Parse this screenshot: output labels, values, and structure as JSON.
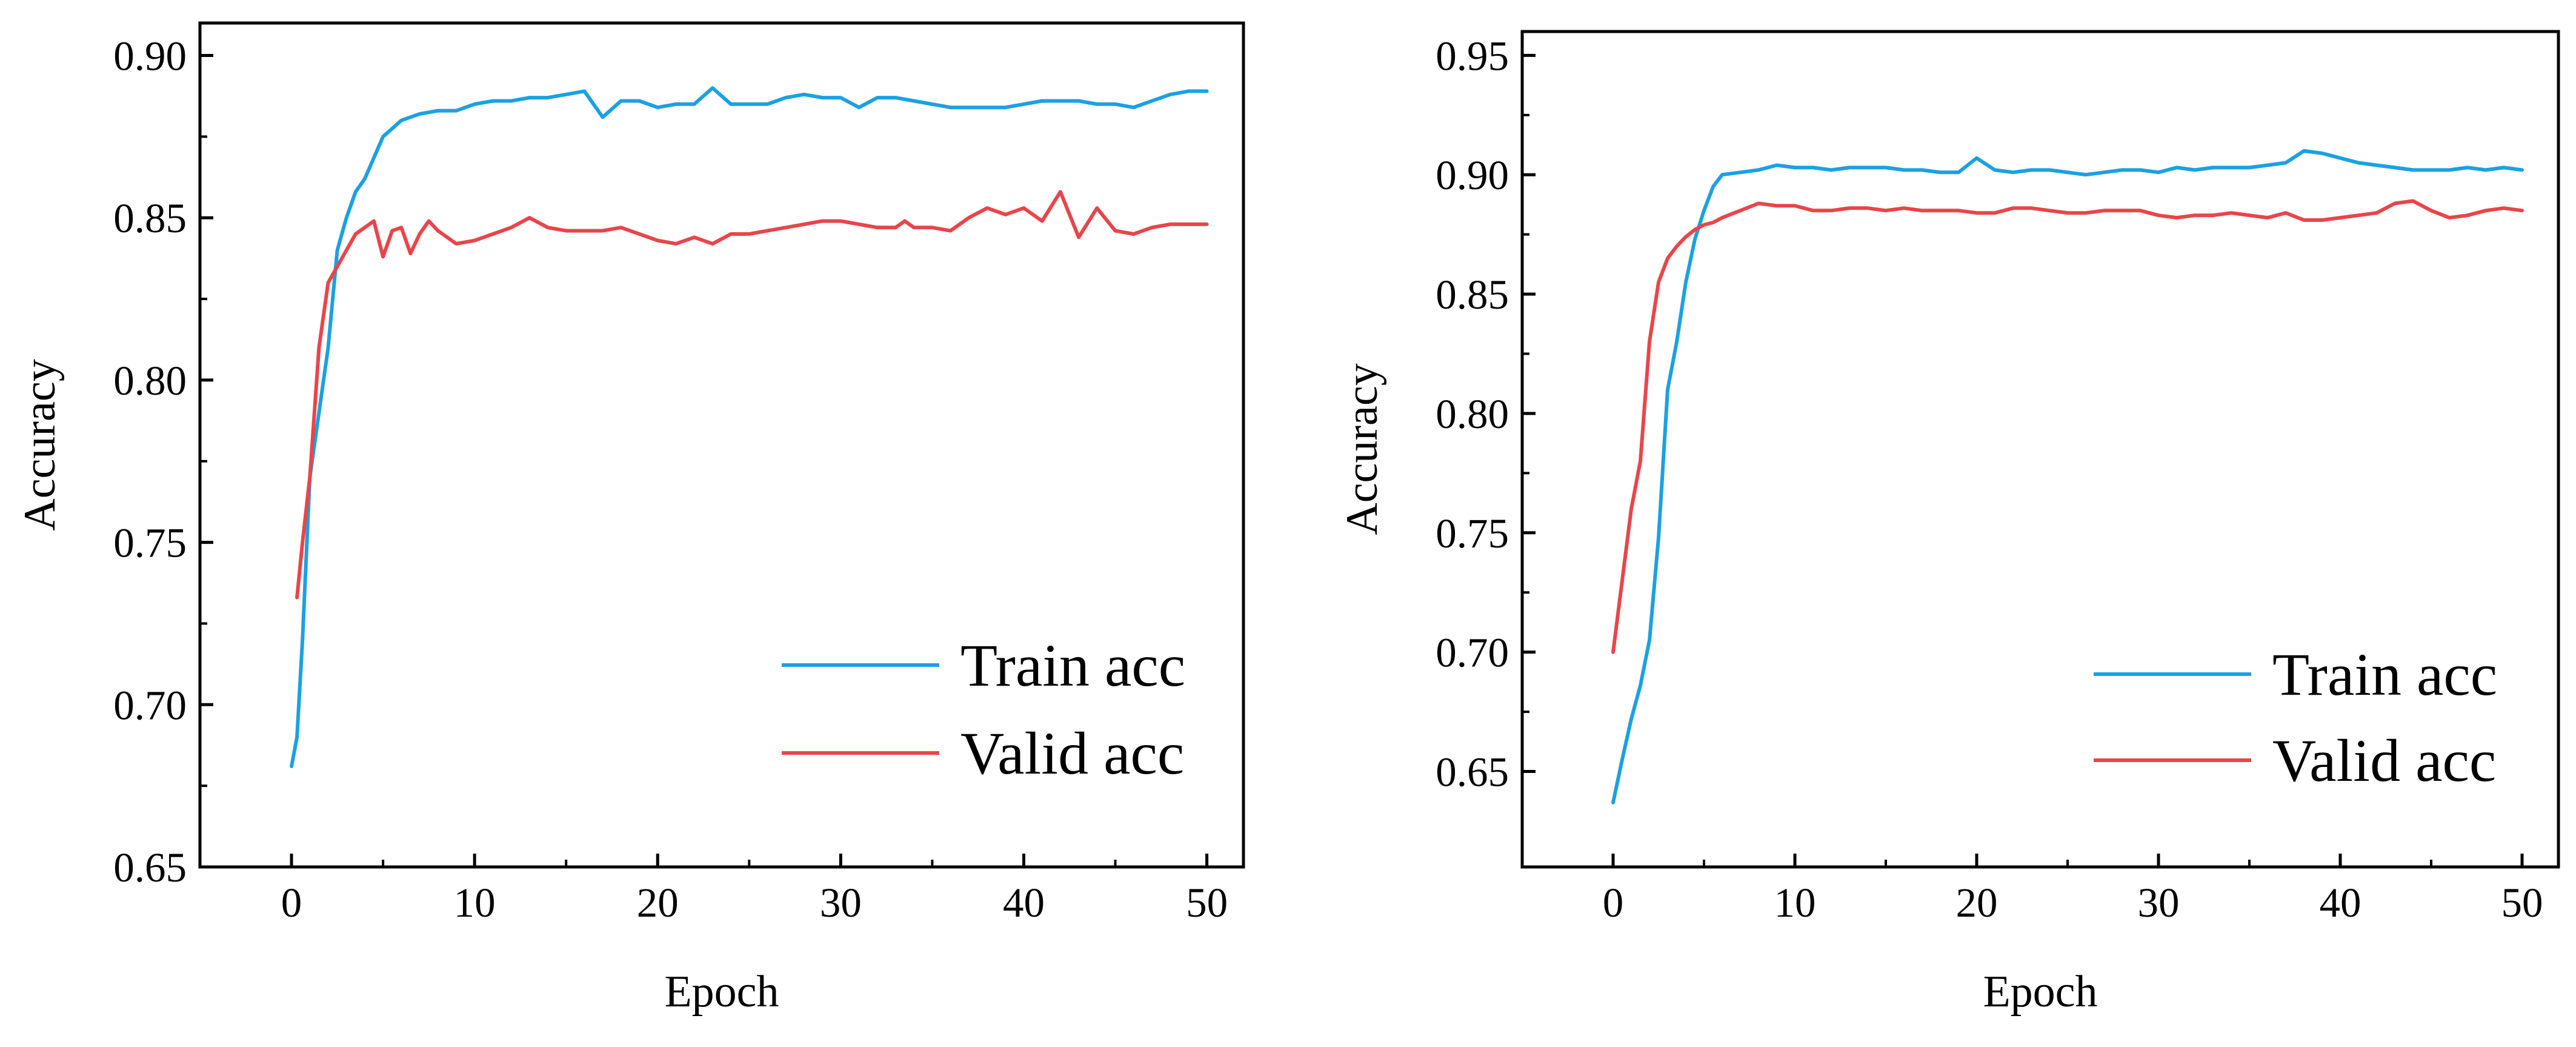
{
  "chart_data": [
    {
      "type": "line",
      "title": "",
      "xlabel": "Epoch",
      "ylabel": "Accuracy",
      "xlim": [
        -5,
        52
      ],
      "ylim": [
        0.65,
        0.91
      ],
      "xticks": [
        0,
        10,
        20,
        30,
        40,
        50
      ],
      "xtick_labels": [
        "0",
        "10",
        "20",
        "30",
        "40",
        "50"
      ],
      "yticks": [
        0.65,
        0.7,
        0.75,
        0.8,
        0.85,
        0.9
      ],
      "ytick_labels": [
        "0.65",
        "0.70",
        "0.75",
        "0.80",
        "0.85",
        "0.90"
      ],
      "legend_position": "bottom-right",
      "grid": false,
      "series": [
        {
          "name": "Train acc",
          "color": "#1ba1e2",
          "x": [
            0,
            0.3,
            0.6,
            1,
            1.5,
            2,
            2.5,
            3,
            3.5,
            4,
            5,
            6,
            7,
            8,
            9,
            10,
            11,
            12,
            13,
            14,
            15,
            16,
            17,
            18,
            19,
            20,
            21,
            22,
            23,
            24,
            25,
            26,
            27,
            28,
            29,
            30,
            31,
            32,
            33,
            34,
            35,
            36,
            37,
            38,
            39,
            40,
            41,
            42,
            43,
            44,
            45,
            46,
            47,
            48,
            49,
            50
          ],
          "values": [
            0.681,
            0.69,
            0.72,
            0.77,
            0.79,
            0.81,
            0.84,
            0.85,
            0.858,
            0.862,
            0.875,
            0.88,
            0.882,
            0.883,
            0.883,
            0.885,
            0.886,
            0.886,
            0.887,
            0.887,
            0.888,
            0.889,
            0.881,
            0.886,
            0.886,
            0.884,
            0.885,
            0.885,
            0.89,
            0.885,
            0.885,
            0.885,
            0.887,
            0.888,
            0.887,
            0.887,
            0.884,
            0.887,
            0.887,
            0.886,
            0.885,
            0.884,
            0.884,
            0.884,
            0.884,
            0.885,
            0.886,
            0.886,
            0.886,
            0.885,
            0.885,
            0.884,
            0.886,
            0.888,
            0.889,
            0.889
          ]
        },
        {
          "name": "Valid acc",
          "color": "#e8454a",
          "x": [
            0.3,
            0.6,
            1,
            1.5,
            2,
            2.5,
            3,
            3.5,
            4,
            4.5,
            5,
            5.5,
            6,
            6.5,
            7,
            7.5,
            8,
            9,
            10,
            11,
            12,
            13,
            14,
            15,
            16,
            17,
            18,
            19,
            20,
            21,
            22,
            23,
            24,
            25,
            26,
            27,
            28,
            29,
            30,
            31,
            32,
            33,
            33.5,
            34,
            35,
            36,
            37,
            38,
            39,
            40,
            41,
            42,
            43,
            44,
            45,
            46,
            47,
            48,
            49,
            50
          ],
          "values": [
            0.733,
            0.75,
            0.77,
            0.81,
            0.83,
            0.835,
            0.84,
            0.845,
            0.847,
            0.849,
            0.838,
            0.846,
            0.847,
            0.839,
            0.845,
            0.849,
            0.846,
            0.842,
            0.843,
            0.845,
            0.847,
            0.85,
            0.847,
            0.846,
            0.846,
            0.846,
            0.847,
            0.845,
            0.843,
            0.842,
            0.844,
            0.842,
            0.845,
            0.845,
            0.846,
            0.847,
            0.848,
            0.849,
            0.849,
            0.848,
            0.847,
            0.847,
            0.849,
            0.847,
            0.847,
            0.846,
            0.85,
            0.853,
            0.851,
            0.853,
            0.849,
            0.858,
            0.844,
            0.853,
            0.846,
            0.845,
            0.847,
            0.848,
            0.848,
            0.848
          ]
        }
      ]
    },
    {
      "type": "line",
      "title": "",
      "xlabel": "Epoch",
      "ylabel": "Accuracy",
      "xlim": [
        -5,
        52
      ],
      "ylim": [
        0.61,
        0.96
      ],
      "xticks": [
        0,
        10,
        20,
        30,
        40,
        50
      ],
      "xtick_labels": [
        "0",
        "10",
        "20",
        "30",
        "40",
        "50"
      ],
      "yticks": [
        0.65,
        0.7,
        0.75,
        0.8,
        0.85,
        0.9,
        0.95
      ],
      "ytick_labels": [
        "0.65",
        "0.70",
        "0.75",
        "0.80",
        "0.85",
        "0.90",
        "0.95"
      ],
      "legend_position": "bottom-right",
      "grid": false,
      "series": [
        {
          "name": "Train acc",
          "color": "#1ba1e2",
          "x": [
            0,
            0.5,
            1,
            1.5,
            2,
            2.5,
            3,
            3.5,
            4,
            4.5,
            5,
            5.5,
            6,
            7,
            8,
            9,
            10,
            11,
            12,
            13,
            14,
            15,
            16,
            17,
            18,
            19,
            20,
            21,
            22,
            23,
            24,
            25,
            26,
            27,
            28,
            29,
            30,
            31,
            32,
            33,
            34,
            35,
            36,
            37,
            38,
            39,
            40,
            41,
            42,
            43,
            44,
            45,
            46,
            47,
            48,
            49,
            50
          ],
          "values": [
            0.637,
            0.655,
            0.672,
            0.686,
            0.705,
            0.748,
            0.81,
            0.83,
            0.855,
            0.873,
            0.885,
            0.895,
            0.9,
            0.901,
            0.902,
            0.904,
            0.903,
            0.903,
            0.902,
            0.903,
            0.903,
            0.903,
            0.902,
            0.902,
            0.901,
            0.901,
            0.907,
            0.902,
            0.901,
            0.902,
            0.902,
            0.901,
            0.9,
            0.901,
            0.902,
            0.902,
            0.901,
            0.903,
            0.902,
            0.903,
            0.903,
            0.903,
            0.904,
            0.905,
            0.91,
            0.909,
            0.907,
            0.905,
            0.904,
            0.903,
            0.902,
            0.902,
            0.902,
            0.903,
            0.902,
            0.903,
            0.902
          ]
        },
        {
          "name": "Valid acc",
          "color": "#e8454a",
          "x": [
            0,
            0.5,
            1,
            1.5,
            2,
            2.5,
            3,
            3.5,
            4,
            4.5,
            5,
            5.5,
            6,
            7,
            8,
            9,
            10,
            11,
            12,
            13,
            14,
            15,
            16,
            17,
            18,
            19,
            20,
            21,
            22,
            23,
            24,
            25,
            26,
            27,
            28,
            29,
            30,
            31,
            32,
            33,
            34,
            35,
            36,
            37,
            38,
            39,
            40,
            41,
            42,
            43,
            44,
            45,
            46,
            47,
            48,
            49,
            50
          ],
          "values": [
            0.7,
            0.73,
            0.76,
            0.78,
            0.83,
            0.855,
            0.865,
            0.87,
            0.874,
            0.877,
            0.879,
            0.88,
            0.882,
            0.885,
            0.888,
            0.887,
            0.887,
            0.885,
            0.885,
            0.886,
            0.886,
            0.885,
            0.886,
            0.885,
            0.885,
            0.885,
            0.884,
            0.884,
            0.886,
            0.886,
            0.885,
            0.884,
            0.884,
            0.885,
            0.885,
            0.885,
            0.883,
            0.882,
            0.883,
            0.883,
            0.884,
            0.883,
            0.882,
            0.884,
            0.881,
            0.881,
            0.882,
            0.883,
            0.884,
            0.888,
            0.889,
            0.885,
            0.882,
            0.883,
            0.885,
            0.886,
            0.885
          ]
        }
      ]
    }
  ]
}
